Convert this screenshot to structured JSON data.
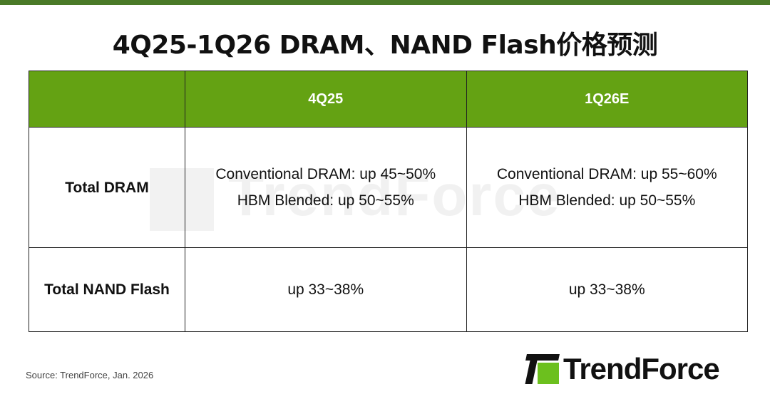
{
  "title": "4Q25-1Q26 DRAM、NAND Flash价格预测",
  "colors": {
    "top_bar": "#4a7a28",
    "header_bg": "#64a213",
    "logo_green": "#6cc01e"
  },
  "table": {
    "headers": [
      "",
      "4Q25",
      "1Q26E"
    ],
    "rows": [
      {
        "label": "Total DRAM",
        "cells": [
          [
            "Conventional DRAM: up 45~50%",
            "HBM Blended: up 50~55%"
          ],
          [
            "Conventional DRAM: up 55~60%",
            "HBM Blended: up 50~55%"
          ]
        ]
      },
      {
        "label": "Total NAND Flash",
        "cells": [
          [
            "up 33~38%"
          ],
          [
            "up 33~38%"
          ]
        ]
      }
    ]
  },
  "watermark": "TrendForce",
  "source": "Source: TrendForce, Jan. 2026",
  "logo": "TrendForce"
}
